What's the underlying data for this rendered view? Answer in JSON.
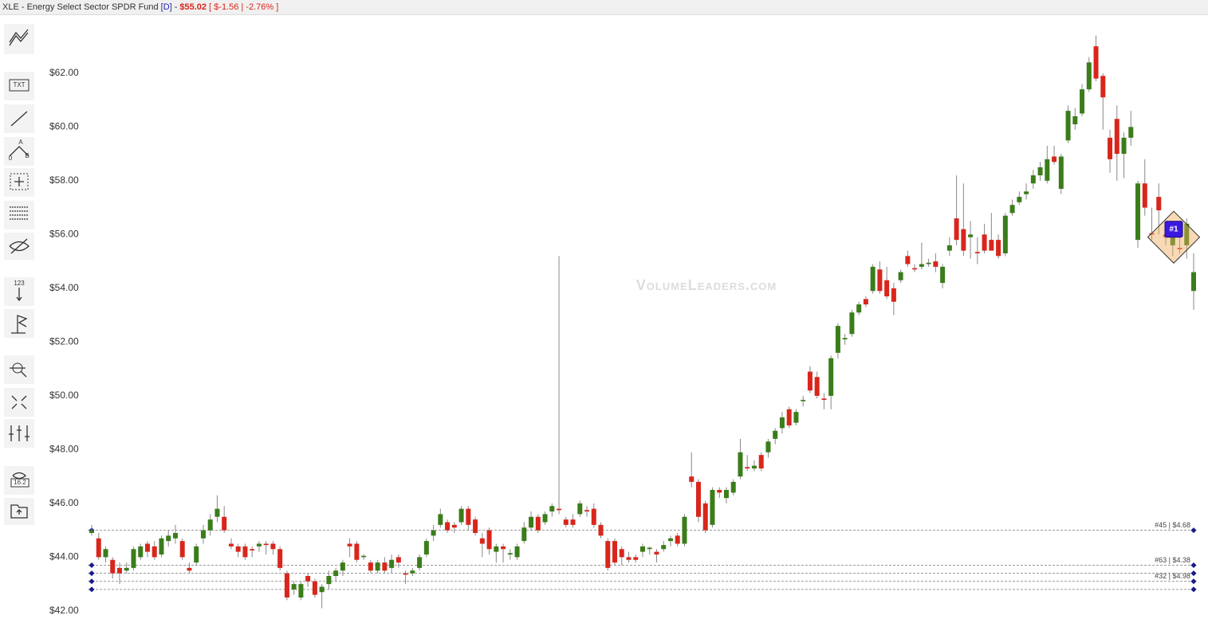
{
  "header": {
    "symbol_name": "XLE - Energy Select Sector SPDR Fund",
    "interval": "[D]",
    "price": "$55.02",
    "change": "[ $-1.56 | -2.76% ]"
  },
  "toolbar": {
    "text_icon": "TXT",
    "ab_labels": [
      "A",
      "0",
      "B"
    ],
    "count_icon": "123",
    "eye_icon": "16.2"
  },
  "chart_data": {
    "type": "candlestick",
    "watermark": "VolumeLeaders.com",
    "up_color": "#3a7d1a",
    "down_color": "#d9261c",
    "ylim": [
      41.7,
      64.07
    ],
    "yticks": [
      {
        "value": 62,
        "label": "$62.00"
      },
      {
        "value": 60,
        "label": "$60.00"
      },
      {
        "value": 58,
        "label": "$58.00"
      },
      {
        "value": 56,
        "label": "$56.00"
      },
      {
        "value": 54,
        "label": "$54.00"
      },
      {
        "value": 52,
        "label": "$52.00"
      },
      {
        "value": 50,
        "label": "$50.00"
      },
      {
        "value": 48,
        "label": "$48.00"
      },
      {
        "value": 46,
        "label": "$46.00"
      },
      {
        "value": 44,
        "label": "$44.00"
      },
      {
        "value": 42,
        "label": "$42.00"
      }
    ],
    "open": [
      44.9,
      44.7,
      44.0,
      43.9,
      43.6,
      43.5,
      43.6,
      44.0,
      44.5,
      44.4,
      44.1,
      44.6,
      44.7,
      44.6,
      43.6,
      43.8,
      44.7,
      45.0,
      45.5,
      45.5,
      44.5,
      44.4,
      44.4,
      44.3,
      44.4,
      44.5,
      44.5,
      44.3,
      43.4,
      42.8,
      42.5,
      43.3,
      43.1,
      42.7,
      43.0,
      43.3,
      43.5,
      44.5,
      44.5,
      44.0,
      43.8,
      43.5,
      43.8,
      43.6,
      44.0,
      43.4,
      43.4,
      43.6,
      44.1,
      44.8,
      45.2,
      45.3,
      45.2,
      45.3,
      45.8,
      45.4,
      44.7,
      45.0,
      44.2,
      44.4,
      44.1,
      44.0,
      44.6,
      45.1,
      45.5,
      45.3,
      45.7,
      45.8,
      45.4,
      45.4,
      45.6,
      45.75,
      45.8,
      45.2,
      44.6,
      44.6,
      44.3,
      44.0,
      44.0,
      44.2,
      44.3,
      44.2,
      44.3,
      44.6,
      44.8,
      44.5,
      47.0,
      46.8,
      46.0,
      45.2,
      46.5,
      46.2,
      46.4,
      47.0,
      47.35,
      47.3,
      47.8,
      47.9,
      48.4,
      48.8,
      49.5,
      49.0,
      49.8,
      50.9,
      50.7,
      49.9,
      50.0,
      51.6,
      52.1,
      52.3,
      53.1,
      53.6,
      53.9,
      54.7,
      54.3,
      54.0,
      54.3,
      55.2,
      54.75,
      54.8,
      54.9,
      55.0,
      54.2,
      55.4,
      56.6,
      56.2,
      55.9,
      55.35,
      56.0,
      55.8,
      55.8,
      55.3,
      56.8,
      57.2,
      57.5,
      57.9,
      58.2,
      58.0,
      58.9,
      57.7,
      59.5,
      60.1,
      60.5,
      61.4,
      63.0,
      61.9,
      59.6,
      60.3,
      59.0,
      59.6,
      55.8,
      57.9,
      56.05,
      57.4,
      56.0,
      55.6,
      55.5,
      55.6,
      53.9
    ],
    "high": [
      45.2,
      44.9,
      44.4,
      44.0,
      43.8,
      43.8,
      44.4,
      44.5,
      44.6,
      44.6,
      44.8,
      45.0,
      45.2,
      44.7,
      43.8,
      44.5,
      45.2,
      45.6,
      46.3,
      45.9,
      44.7,
      44.5,
      44.5,
      44.4,
      44.6,
      44.6,
      44.6,
      44.4,
      43.5,
      43.1,
      43.1,
      43.4,
      43.2,
      43.0,
      43.5,
      43.6,
      43.9,
      44.7,
      44.6,
      44.1,
      43.9,
      43.9,
      44.0,
      44.1,
      44.1,
      43.5,
      43.6,
      44.1,
      44.7,
      45.2,
      45.8,
      45.4,
      45.3,
      45.9,
      45.9,
      45.5,
      44.9,
      45.1,
      44.5,
      44.5,
      44.3,
      44.5,
      45.3,
      45.7,
      45.6,
      45.7,
      46.0,
      55.2,
      45.5,
      45.6,
      46.1,
      45.9,
      46.0,
      45.3,
      44.7,
      44.7,
      44.4,
      44.2,
      44.1,
      44.5,
      44.4,
      44.3,
      44.6,
      44.8,
      44.9,
      45.6,
      47.9,
      46.9,
      46.1,
      46.6,
      46.6,
      46.6,
      46.9,
      48.4,
      47.8,
      47.6,
      47.9,
      48.4,
      48.8,
      49.4,
      49.6,
      49.5,
      50.0,
      51.1,
      50.9,
      50.1,
      51.5,
      52.7,
      52.3,
      53.2,
      53.5,
      53.7,
      54.9,
      55.0,
      54.8,
      54.2,
      54.7,
      55.4,
      54.9,
      55.7,
      55.1,
      55.3,
      54.9,
      55.9,
      58.2,
      57.9,
      56.5,
      55.9,
      56.4,
      56.8,
      56.0,
      56.8,
      57.3,
      57.6,
      57.9,
      58.4,
      58.7,
      59.3,
      59.3,
      59.0,
      60.8,
      60.7,
      61.6,
      62.6,
      63.4,
      62.0,
      59.9,
      60.8,
      59.8,
      60.6,
      58.0,
      58.8,
      57.0,
      57.9,
      56.3,
      56.3,
      55.9,
      56.6,
      55.3
    ],
    "low": [
      44.8,
      43.9,
      43.8,
      43.2,
      43.0,
      43.4,
      43.5,
      43.9,
      44.0,
      43.9,
      44.0,
      44.4,
      44.5,
      43.9,
      43.4,
      43.7,
      44.5,
      44.8,
      45.3,
      44.9,
      44.3,
      44.0,
      43.9,
      44.0,
      44.2,
      44.1,
      44.1,
      43.5,
      42.4,
      42.6,
      42.4,
      42.9,
      42.5,
      42.1,
      42.8,
      43.1,
      43.3,
      44.0,
      43.8,
      43.9,
      43.4,
      43.4,
      43.4,
      43.4,
      43.6,
      43.0,
      43.3,
      43.5,
      44.0,
      44.6,
      45.1,
      44.9,
      44.9,
      45.2,
      45.0,
      44.8,
      44.0,
      44.1,
      43.8,
      43.8,
      43.9,
      43.9,
      44.5,
      45.0,
      44.9,
      45.2,
      45.5,
      45.6,
      45.1,
      45.1,
      45.5,
      45.5,
      45.1,
      44.7,
      43.5,
      43.7,
      43.7,
      43.8,
      43.8,
      44.0,
      44.1,
      43.8,
      44.2,
      44.4,
      44.4,
      44.4,
      46.6,
      45.3,
      44.9,
      45.1,
      46.2,
      46.0,
      46.3,
      46.9,
      47.2,
      47.2,
      47.2,
      47.7,
      48.2,
      48.6,
      48.8,
      48.9,
      49.6,
      50.1,
      49.9,
      49.5,
      49.5,
      51.4,
      51.9,
      52.2,
      53.0,
      53.3,
      53.8,
      53.8,
      53.6,
      53.0,
      54.2,
      54.8,
      54.6,
      54.7,
      54.8,
      54.6,
      54.0,
      55.2,
      55.6,
      55.2,
      55.1,
      54.9,
      55.3,
      55.4,
      55.1,
      55.2,
      56.7,
      57.1,
      57.3,
      57.7,
      58.0,
      57.9,
      58.6,
      57.5,
      59.4,
      59.9,
      60.4,
      61.3,
      61.7,
      59.9,
      58.3,
      58.0,
      58.1,
      59.3,
      55.5,
      56.7,
      55.8,
      56.0,
      55.6,
      55.2,
      55.3,
      55.1,
      53.2
    ],
    "close": [
      45.0,
      44.0,
      44.3,
      43.4,
      43.4,
      43.6,
      44.3,
      44.4,
      44.2,
      44.0,
      44.7,
      44.8,
      44.9,
      44.0,
      43.5,
      44.4,
      45.0,
      45.4,
      45.8,
      45.0,
      44.4,
      44.2,
      44.0,
      44.25,
      44.5,
      44.45,
      44.3,
      43.6,
      42.5,
      43.0,
      43.0,
      43.1,
      42.6,
      42.9,
      43.3,
      43.5,
      43.8,
      44.4,
      43.9,
      44.05,
      43.5,
      43.8,
      43.5,
      43.9,
      43.8,
      43.35,
      43.5,
      44.0,
      44.6,
      45.0,
      45.6,
      45.0,
      45.1,
      45.8,
      45.2,
      44.9,
      44.5,
      44.3,
      44.4,
      44.3,
      44.15,
      44.4,
      45.1,
      45.5,
      45.0,
      45.6,
      45.9,
      45.75,
      45.2,
      45.2,
      46.0,
      45.7,
      45.2,
      44.8,
      43.6,
      43.8,
      44.0,
      43.9,
      43.9,
      44.4,
      44.35,
      44.1,
      44.45,
      44.7,
      44.5,
      45.5,
      46.8,
      45.5,
      45.0,
      46.5,
      46.4,
      46.5,
      46.8,
      47.9,
      47.3,
      47.4,
      47.3,
      48.3,
      48.7,
      49.2,
      48.9,
      49.4,
      49.85,
      50.2,
      50.0,
      49.85,
      51.4,
      52.6,
      52.15,
      53.1,
      53.4,
      53.4,
      54.8,
      53.9,
      53.7,
      53.5,
      54.6,
      54.9,
      54.7,
      54.9,
      54.95,
      54.8,
      54.8,
      55.6,
      55.8,
      55.4,
      56.0,
      55.3,
      55.4,
      55.4,
      55.2,
      56.7,
      57.1,
      57.4,
      57.6,
      58.2,
      58.5,
      58.8,
      58.7,
      58.9,
      60.6,
      60.4,
      61.4,
      62.4,
      61.8,
      61.1,
      58.8,
      59.0,
      59.6,
      60.0,
      57.9,
      57.0,
      56.0,
      56.9,
      55.9,
      56.2,
      55.45,
      56.4,
      54.6
    ],
    "levels": [
      {
        "value": 45.0,
        "label": "#45 | $4.68"
      },
      {
        "value": 43.7,
        "label": "#63 | $4.38"
      },
      {
        "value": 43.4
      },
      {
        "value": 43.1,
        "label": "#32 | $4.98"
      },
      {
        "value": 42.8
      }
    ],
    "marker": {
      "label": "#1",
      "value": 55.9
    }
  }
}
